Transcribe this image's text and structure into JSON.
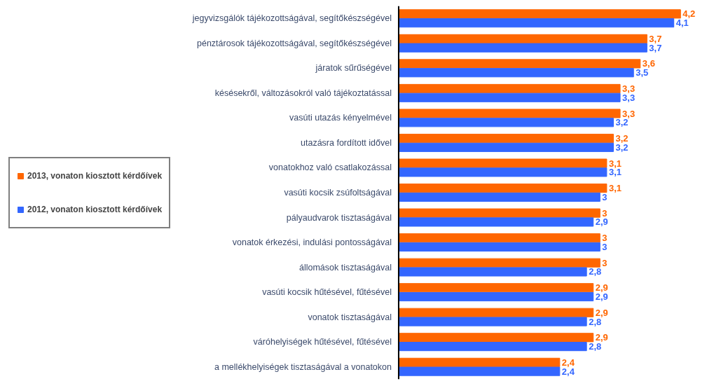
{
  "chart_data": {
    "type": "bar",
    "orientation": "horizontal",
    "categories": [
      "jegyvizsgálók tájékozottságával, segítőkészségével",
      "pénztárosok tájékozottságával, segítőkészségével",
      "járatok sűrűségével",
      "késésekről, változásokról való tájékoztatással",
      "vasúti utazás kényelmével",
      "utazásra fordított idővel",
      "vonatokhoz való csatlakozással",
      "vasúti kocsik zsúfoltságával",
      "pályaudvarok tisztaságával",
      "vonatok érkezési, indulási pontosságával",
      "állomások tisztaságával",
      "vasúti kocsik hűtésével, fűtésével",
      "vonatok tisztaságával",
      "váróhelyiségek hűtésével, fűtésével",
      "a mellékhelyiségek tisztaságával a vonatokon"
    ],
    "series": [
      {
        "name": "2013, vonaton kiosztott kérdőívek",
        "color": "#ff6600",
        "values": [
          4.2,
          3.7,
          3.6,
          3.3,
          3.3,
          3.2,
          3.1,
          3.1,
          3,
          3,
          3,
          2.9,
          2.9,
          2.9,
          2.4
        ],
        "value_labels": [
          "4,2",
          "3,7",
          "3,6",
          "3,3",
          "3,3",
          "3,2",
          "3,1",
          "3,1",
          "3",
          "3",
          "3",
          "2,9",
          "2,9",
          "2,9",
          "2,4"
        ]
      },
      {
        "name": "2012, vonaton kiosztott kérdőívek",
        "color": "#3366ff",
        "values": [
          4.1,
          3.7,
          3.5,
          3.3,
          3.2,
          3.2,
          3.1,
          3,
          2.9,
          3,
          2.8,
          2.9,
          2.8,
          2.8,
          2.4
        ],
        "value_labels": [
          "4,1",
          "3,7",
          "3,5",
          "3,3",
          "3,2",
          "3,2",
          "3,1",
          "3",
          "2,9",
          "3",
          "2,8",
          "2,9",
          "2,8",
          "2,8",
          "2,4"
        ]
      }
    ],
    "tick_labels": "y",
    "grid": false,
    "legend": "left"
  }
}
